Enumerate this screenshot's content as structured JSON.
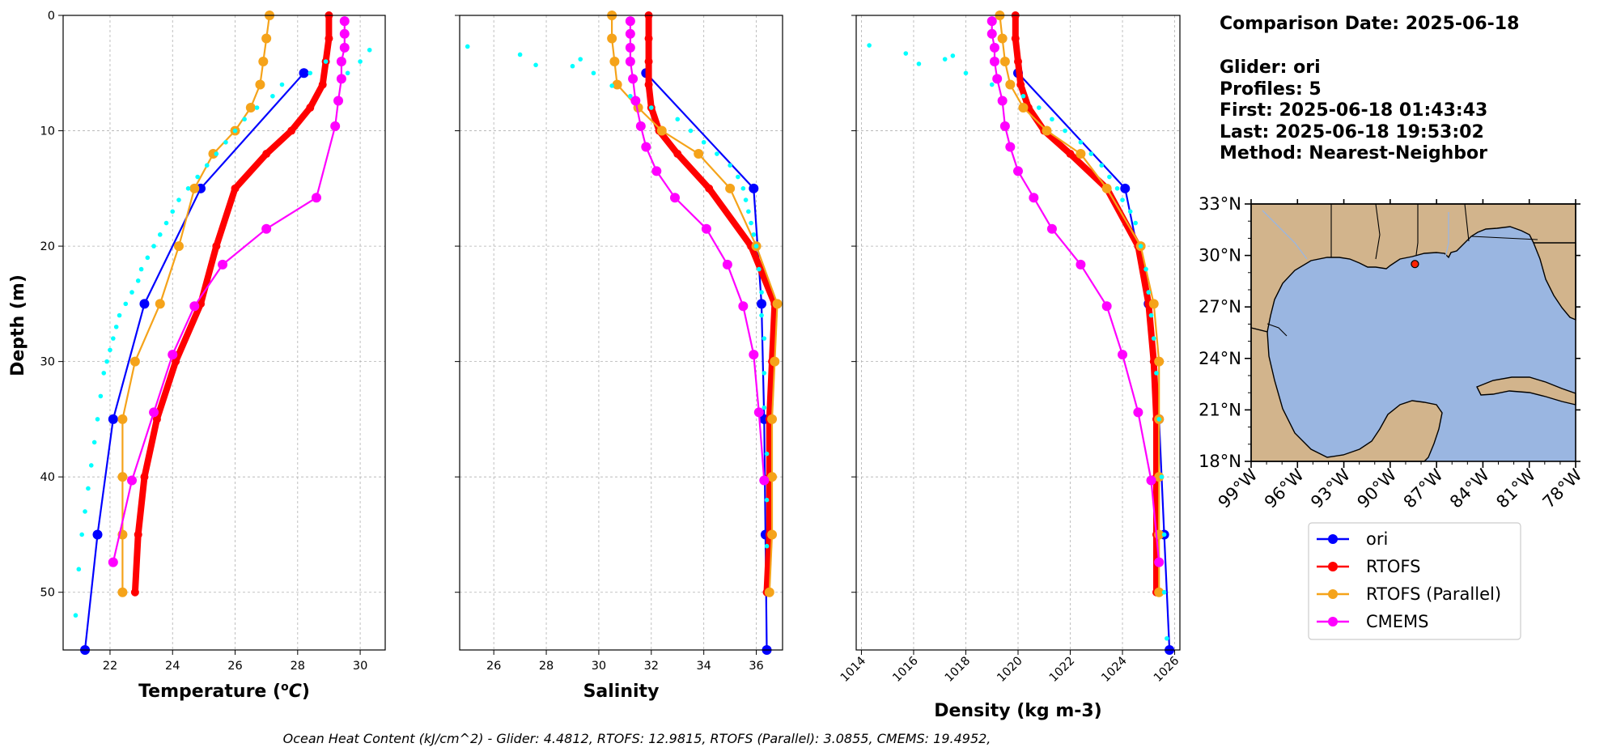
{
  "info": {
    "comparison_date": "Comparison Date: 2025-06-18",
    "glider": "Glider: ori",
    "profiles": "Profiles: 5",
    "first": "First: 2025-06-18 01:43:43",
    "last": "Last: 2025-06-18 19:53:02",
    "method": "Method: Nearest-Neighbor"
  },
  "ohc_text": "Ocean Heat Content (kJ/cm^2) - Glider: 4.4812,  RTOFS: 12.9815,  RTOFS (Parallel): 3.0855,  CMEMS: 19.4952,",
  "colors": {
    "glider": "#0000ff",
    "rtofs": "#ff0000",
    "rtofs_parallel": "#f5a31a",
    "cmems": "#ff00ff",
    "glider_raw": "#00ffff",
    "land": "#d2b48c",
    "ocean": "#9ab6e1"
  },
  "legend": [
    {
      "key": "glider",
      "label": "ori"
    },
    {
      "key": "rtofs",
      "label": "RTOFS"
    },
    {
      "key": "rtofs_parallel",
      "label": "RTOFS (Parallel)"
    },
    {
      "key": "cmems",
      "label": "CMEMS"
    }
  ],
  "map": {
    "lat_ticks": [
      "33°N",
      "30°N",
      "27°N",
      "24°N",
      "21°N",
      "18°N"
    ],
    "lon_ticks": [
      "99°W",
      "96°W",
      "93°W",
      "90°W",
      "87°W",
      "84°W",
      "81°W",
      "78°W"
    ],
    "glider_location": {
      "lon": -88.4,
      "lat": 29.5
    }
  },
  "chart_data": [
    {
      "type": "line",
      "xlabel": "Temperature (°C)",
      "ylabel": "Depth (m)",
      "xlim": [
        20.5,
        30.8
      ],
      "ylim": [
        55,
        0
      ],
      "y_inverted": true,
      "grid": true,
      "xticks": [
        22,
        24,
        26,
        28,
        30
      ],
      "yticks": [
        0,
        10,
        20,
        30,
        40,
        50
      ],
      "series": [
        {
          "name": "ori",
          "key": "glider",
          "style": "line-marker",
          "x": [
            28.2,
            24.9,
            23.1,
            22.1,
            21.6,
            21.2
          ],
          "y": [
            5,
            15,
            25,
            35,
            45,
            55
          ]
        },
        {
          "name": "RTOFS",
          "key": "rtofs",
          "style": "thick-line-marker",
          "x": [
            29.0,
            29.0,
            28.9,
            28.8,
            28.4,
            27.8,
            27.0,
            26.0,
            25.4,
            24.9,
            24.1,
            23.5,
            23.1,
            22.9,
            22.8
          ],
          "y": [
            0,
            2,
            4,
            6,
            8,
            10,
            12,
            15,
            20,
            25,
            30,
            35,
            40,
            45,
            50
          ]
        },
        {
          "name": "RTOFS (Parallel)",
          "key": "rtofs_parallel",
          "style": "line-marker",
          "x": [
            27.1,
            27.0,
            26.9,
            26.8,
            26.5,
            26.0,
            25.3,
            24.7,
            24.2,
            23.6,
            22.8,
            22.4,
            22.4,
            22.4,
            22.4
          ],
          "y": [
            0,
            2,
            4,
            6,
            8,
            10,
            12,
            15,
            20,
            25,
            30,
            35,
            40,
            45,
            50
          ]
        },
        {
          "name": "CMEMS",
          "key": "cmems",
          "style": "line-marker",
          "x": [
            29.5,
            29.5,
            29.5,
            29.4,
            29.4,
            29.3,
            29.2,
            28.6,
            27.0,
            25.6,
            24.7,
            24.0,
            23.4,
            22.7,
            22.1
          ],
          "y": [
            0.5,
            1.6,
            2.8,
            4.0,
            5.5,
            7.4,
            9.6,
            15.8,
            18.5,
            21.6,
            25.2,
            29.4,
            34.4,
            40.3,
            47.4
          ]
        },
        {
          "name": "glider raw",
          "key": "glider_raw",
          "style": "dots",
          "x": [
            30.3,
            30.0,
            29.6,
            28.9,
            28.4,
            27.5,
            27.2,
            26.7,
            26.3,
            26.0,
            25.7,
            25.4,
            25.1,
            24.8,
            24.5,
            24.2,
            24.0,
            23.8,
            23.6,
            23.4,
            23.2,
            23.0,
            22.9,
            22.7,
            22.5,
            22.3,
            22.2,
            22.1,
            22.0,
            21.9,
            21.8,
            21.7,
            21.6,
            21.5,
            21.4,
            21.3,
            21.2,
            21.1,
            21.0,
            20.9
          ],
          "y": [
            3,
            4,
            5,
            4,
            5,
            6,
            7,
            8,
            9,
            10,
            11,
            12,
            13,
            14,
            15,
            16,
            17,
            18,
            19,
            20,
            21,
            22,
            23,
            24,
            25,
            26,
            27,
            28,
            29,
            30,
            31,
            33,
            35,
            37,
            39,
            41,
            43,
            45,
            48,
            52
          ]
        }
      ]
    },
    {
      "type": "line",
      "xlabel": "Salinity",
      "ylabel": "",
      "xlim": [
        24.7,
        37.0
      ],
      "ylim": [
        55,
        0
      ],
      "y_inverted": true,
      "grid": true,
      "xticks": [
        26,
        28,
        30,
        32,
        34,
        36
      ],
      "yticks": [
        0,
        10,
        20,
        30,
        40,
        50
      ],
      "series": [
        {
          "name": "ori",
          "key": "glider",
          "style": "line-marker",
          "x": [
            31.8,
            35.9,
            36.2,
            36.3,
            36.35,
            36.4
          ],
          "y": [
            5,
            15,
            25,
            35,
            45,
            55
          ]
        },
        {
          "name": "RTOFS",
          "key": "rtofs",
          "style": "thick-line-marker",
          "x": [
            31.9,
            31.9,
            31.9,
            31.9,
            32.0,
            32.3,
            33.0,
            34.2,
            35.8,
            36.7,
            36.6,
            36.5,
            36.5,
            36.5,
            36.4
          ],
          "y": [
            0,
            2,
            4,
            6,
            8,
            10,
            12,
            15,
            20,
            25,
            30,
            35,
            40,
            45,
            50
          ]
        },
        {
          "name": "RTOFS (Parallel)",
          "key": "rtofs_parallel",
          "style": "line-marker",
          "x": [
            30.5,
            30.5,
            30.6,
            30.7,
            31.5,
            32.4,
            33.8,
            35.0,
            36.0,
            36.8,
            36.7,
            36.6,
            36.6,
            36.6,
            36.5
          ],
          "y": [
            0,
            2,
            4,
            6,
            8,
            10,
            12,
            15,
            20,
            25,
            30,
            35,
            40,
            45,
            50
          ]
        },
        {
          "name": "CMEMS",
          "key": "cmems",
          "style": "line-marker",
          "x": [
            31.2,
            31.2,
            31.2,
            31.2,
            31.3,
            31.4,
            31.6,
            31.8,
            32.2,
            32.9,
            34.1,
            34.9,
            35.5,
            35.9,
            36.1,
            36.3
          ],
          "y": [
            0.5,
            1.6,
            2.8,
            4.0,
            5.5,
            7.4,
            9.6,
            11.4,
            13.5,
            15.8,
            18.5,
            21.6,
            25.2,
            29.4,
            34.4,
            40.3
          ]
        },
        {
          "name": "glider raw",
          "key": "glider_raw",
          "style": "dots",
          "x": [
            25.0,
            27.0,
            27.6,
            29.0,
            29.3,
            29.8,
            30.5,
            31.2,
            32.0,
            33.0,
            33.5,
            34.0,
            34.5,
            35.0,
            35.3,
            35.5,
            35.6,
            35.7,
            35.8,
            35.9,
            36.0,
            36.1,
            36.2,
            36.2,
            36.3,
            36.3,
            36.3,
            36.4,
            36.4,
            36.4
          ],
          "y": [
            2.7,
            3.4,
            4.3,
            4.4,
            3.8,
            5.0,
            6.1,
            7.0,
            8.0,
            9.0,
            10.0,
            11.0,
            12.0,
            13.0,
            14.0,
            15.0,
            16.0,
            17.0,
            18.0,
            19.0,
            20.0,
            22.0,
            24.0,
            26.0,
            28.0,
            31.0,
            34.0,
            38.0,
            42.0,
            46.0
          ]
        }
      ]
    },
    {
      "type": "line",
      "xlabel": "Density (kg m-3)",
      "ylabel": "",
      "xlim": [
        1013.8,
        1026.2
      ],
      "ylim": [
        55,
        0
      ],
      "y_inverted": true,
      "grid": true,
      "xticks": [
        1014,
        1016,
        1018,
        1020,
        1022,
        1024,
        1026
      ],
      "yticks": [
        0,
        10,
        20,
        30,
        40,
        50
      ],
      "series": [
        {
          "name": "ori",
          "key": "glider",
          "style": "line-marker",
          "x": [
            1020.0,
            1024.1,
            1025.0,
            1025.4,
            1025.6,
            1025.8
          ],
          "y": [
            5,
            15,
            25,
            35,
            45,
            55
          ]
        },
        {
          "name": "RTOFS",
          "key": "rtofs",
          "style": "thick-line-marker",
          "x": [
            1019.9,
            1019.9,
            1020.0,
            1020.1,
            1020.4,
            1021.0,
            1022.0,
            1023.4,
            1024.6,
            1025.0,
            1025.2,
            1025.3,
            1025.3,
            1025.3,
            1025.3
          ],
          "y": [
            0,
            2,
            4,
            6,
            8,
            10,
            12,
            15,
            20,
            25,
            30,
            35,
            40,
            45,
            50
          ]
        },
        {
          "name": "RTOFS (Parallel)",
          "key": "rtofs_parallel",
          "style": "line-marker",
          "x": [
            1019.3,
            1019.4,
            1019.5,
            1019.7,
            1020.2,
            1021.1,
            1022.4,
            1023.4,
            1024.7,
            1025.2,
            1025.4,
            1025.4,
            1025.4,
            1025.4,
            1025.4
          ],
          "y": [
            0,
            2,
            4,
            6,
            8,
            10,
            12,
            15,
            20,
            25,
            30,
            35,
            40,
            45,
            50
          ]
        },
        {
          "name": "CMEMS",
          "key": "cmems",
          "style": "line-marker",
          "x": [
            1019.0,
            1019.0,
            1019.1,
            1019.1,
            1019.2,
            1019.4,
            1019.5,
            1019.7,
            1020.0,
            1020.6,
            1021.3,
            1022.4,
            1023.4,
            1024.0,
            1024.6,
            1025.1,
            1025.4
          ],
          "y": [
            0.5,
            1.6,
            2.8,
            4.0,
            5.5,
            7.4,
            9.6,
            11.4,
            13.5,
            15.8,
            18.5,
            21.6,
            25.2,
            29.4,
            34.4,
            40.3,
            47.4
          ]
        },
        {
          "name": "glider raw",
          "key": "glider_raw",
          "style": "dots",
          "x": [
            1014.3,
            1015.7,
            1016.2,
            1017.2,
            1017.5,
            1018.0,
            1019.0,
            1020.2,
            1020.8,
            1021.3,
            1021.8,
            1022.4,
            1022.8,
            1023.2,
            1023.5,
            1023.8,
            1024.0,
            1024.3,
            1024.5,
            1024.7,
            1024.9,
            1025.0,
            1025.1,
            1025.2,
            1025.3,
            1025.4,
            1025.5,
            1025.6,
            1025.6,
            1025.7
          ],
          "y": [
            2.6,
            3.3,
            4.2,
            3.8,
            3.5,
            5.0,
            6.0,
            7.0,
            8.0,
            9.0,
            10.0,
            11.0,
            12.0,
            13.0,
            14.0,
            15.0,
            16.0,
            17.0,
            18.0,
            20.0,
            22.0,
            24.0,
            26.0,
            28.0,
            31.0,
            35.0,
            40.0,
            45.0,
            50.0,
            54.0
          ]
        }
      ]
    }
  ]
}
